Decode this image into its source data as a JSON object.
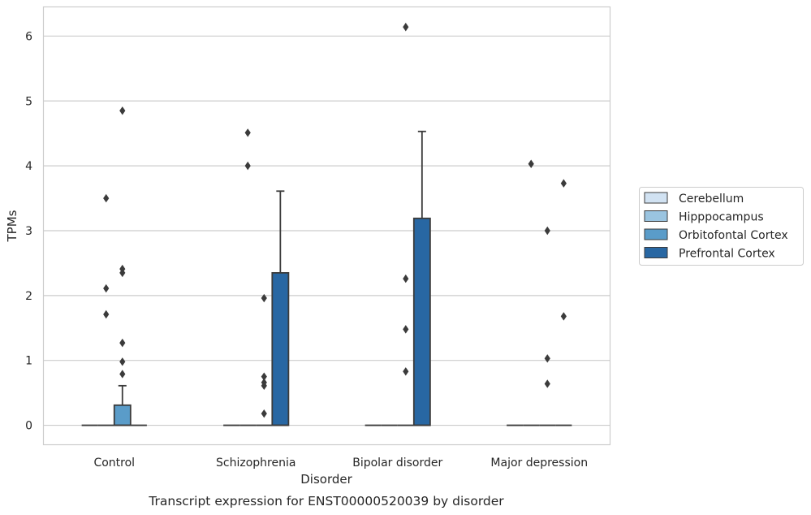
{
  "chart_data": {
    "type": "box",
    "xlabel": "Disorder",
    "ylabel": "TPMs",
    "caption": "Transcript expression for ENST00000520039 by disorder",
    "ylim": [
      -0.3,
      6.45
    ],
    "yticks": [
      0,
      1,
      2,
      3,
      4,
      5,
      6
    ],
    "grid": "horizontal",
    "legend_position": "right",
    "categories": [
      "Control",
      "Schizophrenia",
      "Bipolar disorder",
      "Major depression"
    ],
    "series": [
      {
        "name": "Cerebellum",
        "color": "#d1e2f2",
        "boxes": [
          {
            "q1": 0,
            "median": 0,
            "q3": 0,
            "whisker_low": 0,
            "whisker_high": 0,
            "outliers": []
          },
          {
            "q1": 0,
            "median": 0,
            "q3": 0,
            "whisker_low": 0,
            "whisker_high": 0,
            "outliers": []
          },
          {
            "q1": 0,
            "median": 0,
            "q3": 0,
            "whisker_low": 0,
            "whisker_high": 0,
            "outliers": []
          },
          {
            "q1": 0,
            "median": 0,
            "q3": 0,
            "whisker_low": 0,
            "whisker_high": 0,
            "outliers": []
          }
        ]
      },
      {
        "name": "Hipppocampus",
        "color": "#9ac4e0",
        "boxes": [
          {
            "q1": 0,
            "median": 0,
            "q3": 0,
            "whisker_low": 0,
            "whisker_high": 0,
            "outliers": [
              3.5,
              2.11,
              1.71
            ]
          },
          {
            "q1": 0,
            "median": 0,
            "q3": 0,
            "whisker_low": 0,
            "whisker_high": 0,
            "outliers": [
              4.51,
              4.0
            ]
          },
          {
            "q1": 0,
            "median": 0,
            "q3": 0,
            "whisker_low": 0,
            "whisker_high": 0,
            "outliers": []
          },
          {
            "q1": 0,
            "median": 0,
            "q3": 0,
            "whisker_low": 0,
            "whisker_high": 0,
            "outliers": [
              4.03
            ]
          }
        ]
      },
      {
        "name": "Orbitofontal Cortex",
        "color": "#5a9cc9",
        "boxes": [
          {
            "q1": 0,
            "median": 0,
            "q3": 0.31,
            "whisker_low": 0,
            "whisker_high": 0.61,
            "outliers": [
              1.27,
              0.98,
              0.79,
              4.85,
              2.41,
              2.35
            ]
          },
          {
            "q1": 0,
            "median": 0,
            "q3": 0,
            "whisker_low": 0,
            "whisker_high": 0,
            "outliers": [
              1.96,
              0.75,
              0.66,
              0.61,
              0.18
            ]
          },
          {
            "q1": 0,
            "median": 0,
            "q3": 0,
            "whisker_low": 0,
            "whisker_high": 0,
            "outliers": [
              6.14,
              2.26,
              1.48,
              0.83
            ]
          },
          {
            "q1": 0,
            "median": 0,
            "q3": 0,
            "whisker_low": 0,
            "whisker_high": 0,
            "outliers": [
              3.0,
              1.03,
              0.64
            ]
          }
        ]
      },
      {
        "name": "Prefrontal Cortex",
        "color": "#2867a3",
        "boxes": [
          {
            "q1": 0,
            "median": 0,
            "q3": 0,
            "whisker_low": 0,
            "whisker_high": 0,
            "outliers": []
          },
          {
            "q1": 0,
            "median": 0,
            "q3": 2.35,
            "whisker_low": 0,
            "whisker_high": 3.61,
            "outliers": []
          },
          {
            "q1": 0,
            "median": 0,
            "q3": 3.19,
            "whisker_low": 0,
            "whisker_high": 4.53,
            "outliers": []
          },
          {
            "q1": 0,
            "median": 0,
            "q3": 0,
            "whisker_low": 0,
            "whisker_high": 0,
            "outliers": [
              3.73,
              1.68
            ]
          }
        ]
      }
    ]
  }
}
